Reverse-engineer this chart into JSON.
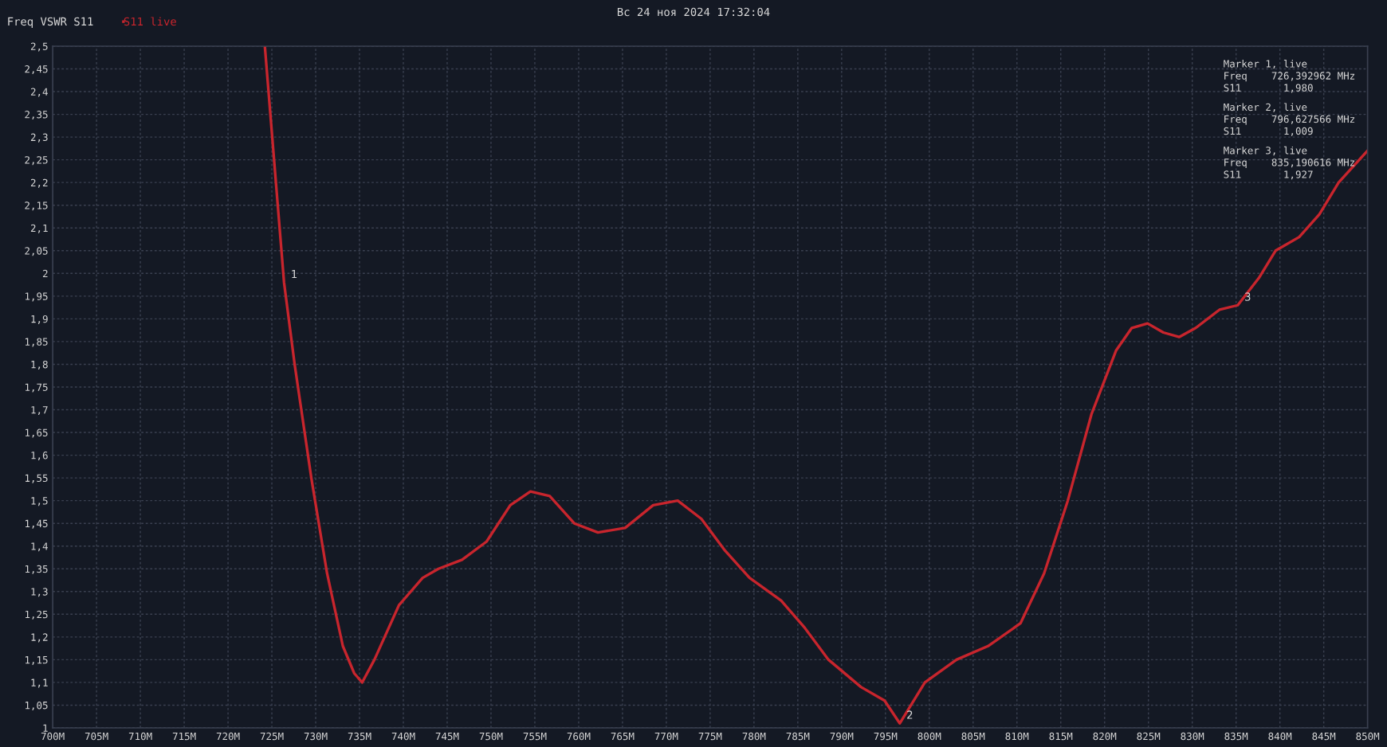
{
  "chart_data": {
    "type": "line",
    "title": "Вс 24 ноя 2024 17:32:04",
    "subtitle": "Freq VSWR S11",
    "x": [
      724.2,
      726.39,
      727.6,
      729.5,
      731.3,
      733.1,
      734.4,
      735.3,
      736.7,
      739.5,
      742.2,
      744.0,
      746.7,
      749.5,
      752.2,
      754.5,
      756.7,
      759.5,
      762.2,
      765.3,
      768.5,
      771.3,
      774.0,
      776.7,
      779.5,
      783.1,
      785.8,
      788.5,
      792.2,
      794.9,
      796.63,
      799.5,
      803.1,
      806.7,
      810.4,
      813.1,
      815.8,
      818.5,
      821.3,
      823.1,
      824.9,
      826.7,
      828.5,
      830.4,
      833.1,
      835.19,
      837.6,
      839.5,
      842.2,
      844.5,
      846.7,
      850.0
    ],
    "series": [
      {
        "name": "S11 live",
        "color": "#c8252d",
        "values": [
          2.5,
          1.98,
          1.8,
          1.55,
          1.34,
          1.18,
          1.12,
          1.1,
          1.15,
          1.27,
          1.33,
          1.35,
          1.37,
          1.41,
          1.49,
          1.52,
          1.51,
          1.45,
          1.43,
          1.44,
          1.49,
          1.5,
          1.46,
          1.39,
          1.33,
          1.28,
          1.22,
          1.15,
          1.09,
          1.06,
          1.01,
          1.1,
          1.15,
          1.18,
          1.23,
          1.34,
          1.5,
          1.69,
          1.83,
          1.88,
          1.89,
          1.87,
          1.86,
          1.88,
          1.92,
          1.93,
          1.99,
          2.05,
          2.08,
          2.13,
          2.2,
          2.27
        ]
      }
    ],
    "xlim": [
      700,
      850
    ],
    "ylim": [
      1,
      2.5
    ],
    "xticks": [
      {
        "value": 700,
        "label": "700M"
      },
      {
        "value": 705,
        "label": "705M"
      },
      {
        "value": 710,
        "label": "710M"
      },
      {
        "value": 715,
        "label": "715M"
      },
      {
        "value": 720,
        "label": "720M"
      },
      {
        "value": 725,
        "label": "725M"
      },
      {
        "value": 730,
        "label": "730M"
      },
      {
        "value": 735,
        "label": "735M"
      },
      {
        "value": 740,
        "label": "740M"
      },
      {
        "value": 745,
        "label": "745M"
      },
      {
        "value": 750,
        "label": "750M"
      },
      {
        "value": 755,
        "label": "755M"
      },
      {
        "value": 760,
        "label": "760M"
      },
      {
        "value": 765,
        "label": "765M"
      },
      {
        "value": 770,
        "label": "770M"
      },
      {
        "value": 775,
        "label": "775M"
      },
      {
        "value": 780,
        "label": "780M"
      },
      {
        "value": 785,
        "label": "785M"
      },
      {
        "value": 790,
        "label": "790M"
      },
      {
        "value": 795,
        "label": "795M"
      },
      {
        "value": 800,
        "label": "800M"
      },
      {
        "value": 805,
        "label": "805M"
      },
      {
        "value": 810,
        "label": "810M"
      },
      {
        "value": 815,
        "label": "815M"
      },
      {
        "value": 820,
        "label": "820M"
      },
      {
        "value": 825,
        "label": "825M"
      },
      {
        "value": 830,
        "label": "830M"
      },
      {
        "value": 835,
        "label": "835M"
      },
      {
        "value": 840,
        "label": "840M"
      },
      {
        "value": 845,
        "label": "845M"
      },
      {
        "value": 850,
        "label": "850M"
      }
    ],
    "yticks": [
      1,
      {
        "value": 1.05,
        "label": "1,05"
      },
      {
        "value": 1.1,
        "label": "1,1"
      },
      {
        "value": 1.15,
        "label": "1,15"
      },
      {
        "value": 1.2,
        "label": "1,2"
      },
      {
        "value": 1.25,
        "label": "1,25"
      },
      {
        "value": 1.3,
        "label": "1,3"
      },
      {
        "value": 1.35,
        "label": "1,35"
      },
      {
        "value": 1.4,
        "label": "1,4"
      },
      {
        "value": 1.45,
        "label": "1,45"
      },
      {
        "value": 1.5,
        "label": "1,5"
      },
      {
        "value": 1.55,
        "label": "1,55"
      },
      {
        "value": 1.6,
        "label": "1,6"
      },
      {
        "value": 1.65,
        "label": "1,65"
      },
      {
        "value": 1.7,
        "label": "1,7"
      },
      {
        "value": 1.75,
        "label": "1,75"
      },
      {
        "value": 1.8,
        "label": "1,8"
      },
      {
        "value": 1.85,
        "label": "1,85"
      },
      {
        "value": 1.9,
        "label": "1,9"
      },
      {
        "value": 1.95,
        "label": "1,95"
      },
      2,
      {
        "value": 2.05,
        "label": "2,05"
      },
      {
        "value": 2.1,
        "label": "2,1"
      },
      {
        "value": 2.15,
        "label": "2,15"
      },
      {
        "value": 2.2,
        "label": "2,2"
      },
      {
        "value": 2.25,
        "label": "2,25"
      },
      {
        "value": 2.3,
        "label": "2,3"
      },
      {
        "value": 2.35,
        "label": "2,35"
      },
      {
        "value": 2.4,
        "label": "2,4"
      },
      {
        "value": 2.45,
        "label": "2,45"
      },
      {
        "value": 2.5,
        "label": "2,5"
      }
    ],
    "grid": true,
    "legend": "top left",
    "annotations": [
      {
        "text": "1",
        "x": 726.39,
        "y": 1.98
      },
      {
        "text": "2",
        "x": 796.63,
        "y": 1.01
      },
      {
        "text": "3",
        "x": 835.19,
        "y": 1.93
      },
      "Marker 1, live\nFreq    726,392962 MHz\nS11       1,980",
      "Marker 2, live\nFreq    796,627566 MHz\nS11       1,009",
      "Marker 3, live\nFreq    835,190616 MHz\nS11       1,927"
    ]
  }
}
